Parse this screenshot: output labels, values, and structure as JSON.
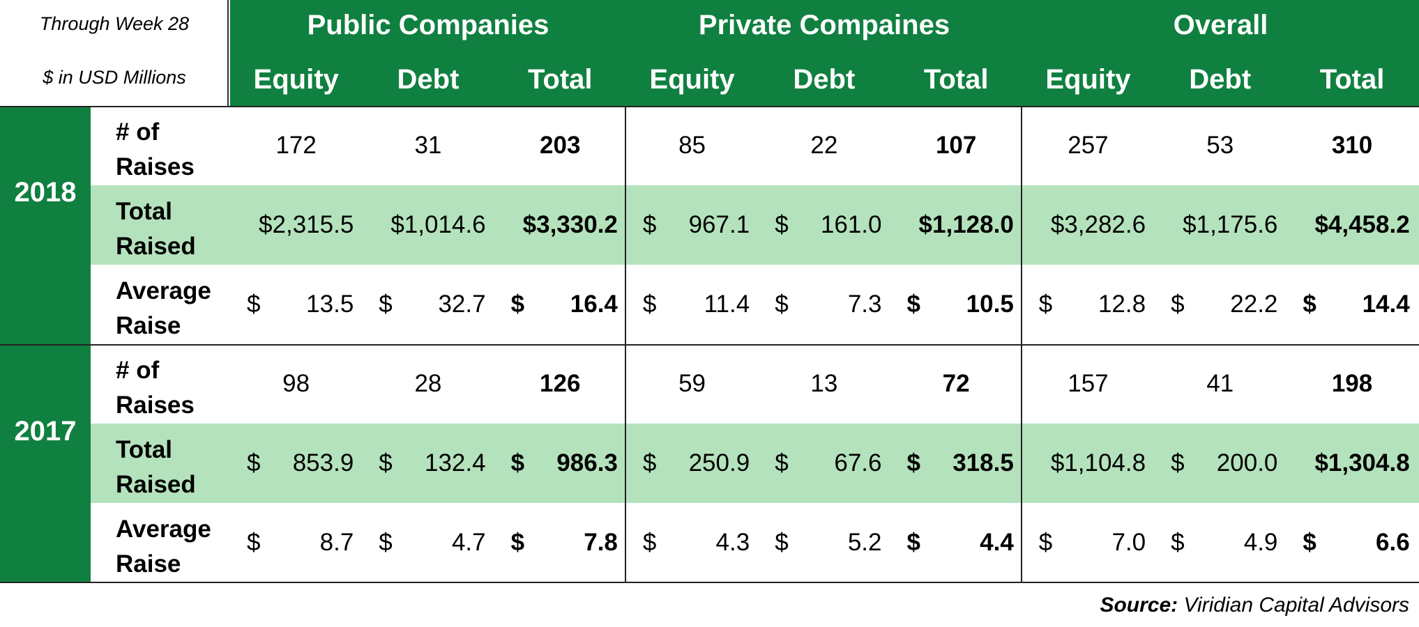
{
  "note": {
    "line1": "Through Week 28",
    "line2": "$ in USD Millions"
  },
  "groups": [
    "Public Companies",
    "Private Compaines",
    "Overall"
  ],
  "columns": [
    "Equity",
    "Debt",
    "Total",
    "Equity",
    "Debt",
    "Total",
    "Equity",
    "Debt",
    "Total"
  ],
  "years": [
    "2018",
    "2017"
  ],
  "row_labels": {
    "count": [
      "# of",
      "Raises"
    ],
    "total": [
      "Total",
      "Raised"
    ],
    "average": [
      "Average",
      "Raise"
    ]
  },
  "colors": {
    "header_green": "#108040",
    "row_shade": "#b4e2bc",
    "header_text": "#ffffff"
  },
  "chart_data": {
    "type": "table",
    "title": "",
    "unit_note": "$ in USD Millions",
    "period_note": "Through Week 28",
    "column_groups": [
      "Public Companies",
      "Private Compaines",
      "Overall"
    ],
    "columns": [
      "Equity",
      "Debt",
      "Total"
    ],
    "years": {
      "2018": {
        "count": {
          "public": [
            172,
            31,
            203
          ],
          "private": [
            85,
            22,
            107
          ],
          "overall": [
            257,
            53,
            310
          ]
        },
        "total": {
          "public": [
            2315.5,
            1014.6,
            3330.2
          ],
          "private": [
            967.1,
            161.0,
            1128.0
          ],
          "overall": [
            3282.6,
            1175.6,
            4458.2
          ]
        },
        "average": {
          "public": [
            13.5,
            32.7,
            16.4
          ],
          "private": [
            11.4,
            7.3,
            10.5
          ],
          "overall": [
            12.8,
            22.2,
            14.4
          ]
        }
      },
      "2017": {
        "count": {
          "public": [
            98,
            28,
            126
          ],
          "private": [
            59,
            13,
            72
          ],
          "overall": [
            157,
            41,
            198
          ]
        },
        "total": {
          "public": [
            853.9,
            132.4,
            986.3
          ],
          "private": [
            250.9,
            67.6,
            318.5
          ],
          "overall": [
            1104.8,
            200.0,
            1304.8
          ]
        },
        "average": {
          "public": [
            8.7,
            4.7,
            7.8
          ],
          "private": [
            4.3,
            5.2,
            4.4
          ],
          "overall": [
            7.0,
            4.9,
            6.6
          ]
        }
      }
    },
    "display": {
      "2018": {
        "count": [
          [
            "",
            "172"
          ],
          [
            "",
            "31"
          ],
          [
            "",
            "203"
          ],
          [
            "",
            "85"
          ],
          [
            "",
            "22"
          ],
          [
            "",
            "107"
          ],
          [
            "",
            "257"
          ],
          [
            "",
            "53"
          ],
          [
            "",
            "310"
          ]
        ],
        "total": [
          [
            "",
            "$2,315.5"
          ],
          [
            "",
            "$1,014.6"
          ],
          [
            "",
            "$3,330.2"
          ],
          [
            "$",
            "967.1"
          ],
          [
            "$",
            "161.0"
          ],
          [
            "",
            "$1,128.0"
          ],
          [
            "",
            "$3,282.6"
          ],
          [
            "",
            "$1,175.6"
          ],
          [
            "",
            "$4,458.2"
          ]
        ],
        "average": [
          [
            "$",
            "13.5"
          ],
          [
            "$",
            "32.7"
          ],
          [
            "$",
            "16.4"
          ],
          [
            "$",
            "11.4"
          ],
          [
            "$",
            "7.3"
          ],
          [
            "$",
            "10.5"
          ],
          [
            "$",
            "12.8"
          ],
          [
            "$",
            "22.2"
          ],
          [
            "$",
            "14.4"
          ]
        ]
      },
      "2017": {
        "count": [
          [
            "",
            "98"
          ],
          [
            "",
            "28"
          ],
          [
            "",
            "126"
          ],
          [
            "",
            "59"
          ],
          [
            "",
            "13"
          ],
          [
            "",
            "72"
          ],
          [
            "",
            "157"
          ],
          [
            "",
            "41"
          ],
          [
            "",
            "198"
          ]
        ],
        "total": [
          [
            "$",
            "853.9"
          ],
          [
            "$",
            "132.4"
          ],
          [
            "$",
            "986.3"
          ],
          [
            "$",
            "250.9"
          ],
          [
            "$",
            "67.6"
          ],
          [
            "$",
            "318.5"
          ],
          [
            "",
            "$1,104.8"
          ],
          [
            "$",
            "200.0"
          ],
          [
            "",
            "$1,304.8"
          ]
        ],
        "average": [
          [
            "$",
            "8.7"
          ],
          [
            "$",
            "4.7"
          ],
          [
            "$",
            "7.8"
          ],
          [
            "$",
            "4.3"
          ],
          [
            "$",
            "5.2"
          ],
          [
            "$",
            "4.4"
          ],
          [
            "$",
            "7.0"
          ],
          [
            "$",
            "4.9"
          ],
          [
            "$",
            "6.6"
          ]
        ]
      }
    }
  },
  "source": {
    "label": "Source:",
    "value": "Viridian Capital Advisors"
  }
}
